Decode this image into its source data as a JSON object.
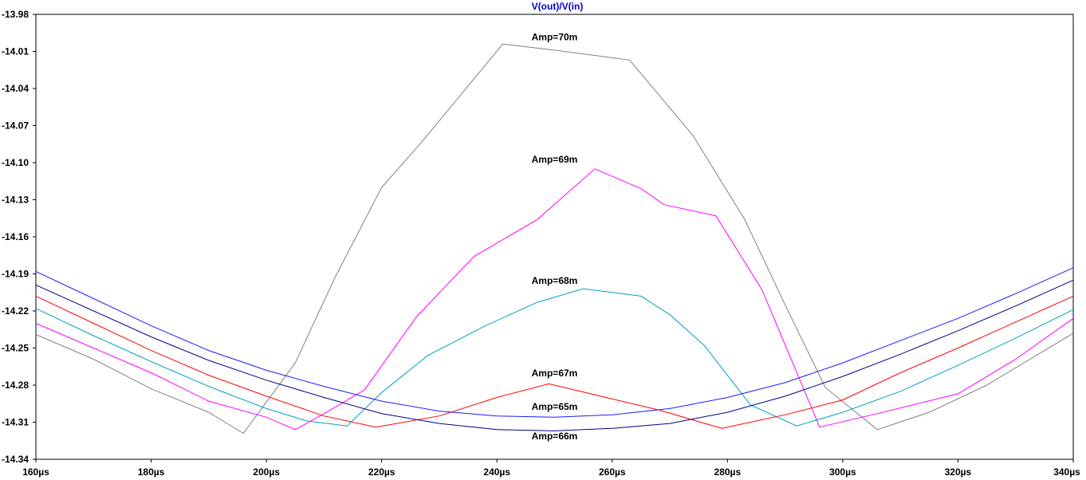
{
  "chart_data": {
    "type": "line",
    "title": "V(out)/V(in)",
    "title_color": "#0000cc",
    "xlabel": "",
    "ylabel": "",
    "xlim": [
      160,
      340
    ],
    "ylim": [
      -14.34,
      -13.98
    ],
    "x_ticks": [
      160,
      180,
      200,
      220,
      240,
      260,
      280,
      300,
      320,
      340
    ],
    "x_tick_labels": [
      "160µs",
      "180µs",
      "200µs",
      "220µs",
      "240µs",
      "260µs",
      "280µs",
      "300µs",
      "320µs",
      "340µs"
    ],
    "y_ticks": [
      -13.98,
      -14.01,
      -14.04,
      -14.07,
      -14.1,
      -14.13,
      -14.16,
      -14.19,
      -14.22,
      -14.25,
      -14.28,
      -14.31,
      -14.34
    ],
    "y_tick_labels": [
      "-13.98",
      "-14.01",
      "-14.04",
      "-14.07",
      "-14.10",
      "-14.13",
      "-14.16",
      "-14.19",
      "-14.22",
      "-14.25",
      "-14.28",
      "-14.31",
      "-14.34"
    ],
    "grid": false,
    "series": [
      {
        "name": "Amp=70m",
        "color": "#808080",
        "x": [
          160,
          170,
          180,
          190,
          196,
          205,
          212,
          220,
          227,
          241,
          250,
          263,
          274,
          283,
          290,
          297,
          306,
          315,
          325,
          340
        ],
        "y": [
          -14.239,
          -14.259,
          -14.283,
          -14.302,
          -14.319,
          -14.262,
          -14.192,
          -14.12,
          -14.083,
          -14.004,
          -14.009,
          -14.017,
          -14.078,
          -14.146,
          -14.215,
          -14.282,
          -14.316,
          -14.302,
          -14.28,
          -14.238
        ]
      },
      {
        "name": "Amp=69m",
        "color": "#ff00ff",
        "x": [
          160,
          170,
          180,
          190,
          200,
          205,
          210,
          217,
          226,
          236,
          247,
          257,
          265,
          269,
          278,
          286,
          296,
          306,
          320,
          330,
          340
        ],
        "y": [
          -14.23,
          -14.25,
          -14.27,
          -14.293,
          -14.306,
          -14.316,
          -14.303,
          -14.284,
          -14.225,
          -14.176,
          -14.146,
          -14.105,
          -14.121,
          -14.134,
          -14.143,
          -14.203,
          -14.314,
          -14.303,
          -14.287,
          -14.259,
          -14.226
        ]
      },
      {
        "name": "Amp=68m",
        "color": "#00a0c0",
        "x": [
          160,
          170,
          180,
          190,
          200,
          207,
          214,
          220,
          228,
          238,
          247,
          255,
          265,
          270,
          276,
          284,
          292,
          300,
          310,
          320,
          330,
          340
        ],
        "y": [
          -14.218,
          -14.24,
          -14.261,
          -14.281,
          -14.299,
          -14.309,
          -14.313,
          -14.286,
          -14.256,
          -14.232,
          -14.213,
          -14.202,
          -14.208,
          -14.223,
          -14.248,
          -14.296,
          -14.313,
          -14.302,
          -14.285,
          -14.264,
          -14.242,
          -14.219
        ]
      },
      {
        "name": "Amp=67m",
        "color": "#ff0000",
        "x": [
          160,
          170,
          180,
          190,
          200,
          210,
          219,
          230,
          240,
          249,
          258,
          268,
          279,
          290,
          300,
          310,
          320,
          330,
          340
        ],
        "y": [
          -14.208,
          -14.23,
          -14.252,
          -14.272,
          -14.289,
          -14.305,
          -14.314,
          -14.305,
          -14.29,
          -14.279,
          -14.289,
          -14.3,
          -14.315,
          -14.304,
          -14.292,
          -14.27,
          -14.25,
          -14.229,
          -14.208
        ]
      },
      {
        "name": "Amp=66m",
        "color": "#00008b",
        "x": [
          160,
          170,
          180,
          190,
          200,
          210,
          220,
          230,
          240,
          250,
          260,
          270,
          280,
          290,
          300,
          310,
          320,
          330,
          340
        ],
        "y": [
          -14.199,
          -14.22,
          -14.241,
          -14.26,
          -14.276,
          -14.29,
          -14.303,
          -14.311,
          -14.316,
          -14.317,
          -14.315,
          -14.311,
          -14.302,
          -14.289,
          -14.273,
          -14.255,
          -14.236,
          -14.216,
          -14.195
        ]
      },
      {
        "name": "Amp=65m",
        "color": "#1a1aff",
        "x": [
          160,
          170,
          180,
          190,
          200,
          210,
          220,
          230,
          240,
          250,
          260,
          270,
          280,
          290,
          300,
          310,
          320,
          330,
          340
        ],
        "y": [
          -14.188,
          -14.21,
          -14.232,
          -14.252,
          -14.268,
          -14.281,
          -14.293,
          -14.301,
          -14.305,
          -14.306,
          -14.304,
          -14.299,
          -14.29,
          -14.278,
          -14.262,
          -14.244,
          -14.226,
          -14.206,
          -14.185
        ]
      }
    ],
    "annotations": [
      {
        "text": "Amp=70m",
        "x": 250,
        "y": -14.001
      },
      {
        "text": "Amp=69m",
        "x": 250,
        "y": -14.1
      },
      {
        "text": "Amp=68m",
        "x": 250,
        "y": -14.198
      },
      {
        "text": "Amp=67m",
        "x": 250,
        "y": -14.273
      },
      {
        "text": "Amp=65m",
        "x": 250,
        "y": -14.3
      },
      {
        "text": "Amp=66m",
        "x": 250,
        "y": -14.324
      }
    ]
  }
}
